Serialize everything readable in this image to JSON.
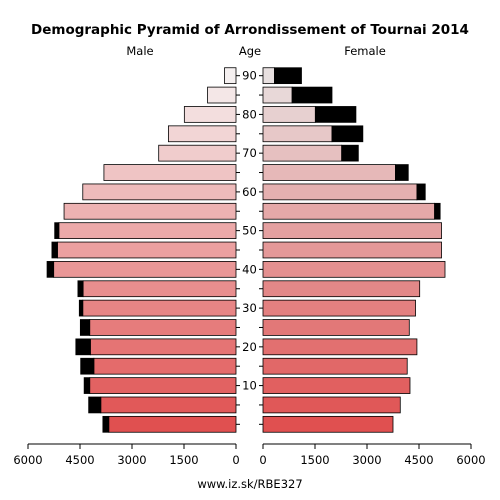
{
  "chart_data": {
    "type": "bar",
    "title": "Demographic Pyramid of Arrondissement of Tournai 2014",
    "left_label": "Male",
    "center_label": "Age",
    "right_label": "Female",
    "footer": "www.iz.sk/RBE327",
    "x_ticks_left": [
      "6000",
      "4500",
      "3000",
      "1500",
      "0"
    ],
    "x_ticks_right": [
      "0",
      "1500",
      "3000",
      "4500",
      "6000"
    ],
    "x_range": [
      0,
      6000
    ],
    "age_ticks": [
      "10",
      "20",
      "30",
      "40",
      "50",
      "60",
      "70",
      "80",
      "90"
    ],
    "age_groups": [
      "0-4",
      "5-9",
      "10-14",
      "15-19",
      "20-24",
      "25-29",
      "30-34",
      "35-39",
      "40-44",
      "45-49",
      "50-54",
      "55-59",
      "60-64",
      "65-69",
      "70-74",
      "75-79",
      "80-84",
      "85-89",
      "90+"
    ],
    "male": [
      3670,
      3900,
      4220,
      4100,
      4200,
      4220,
      4420,
      4410,
      5260,
      5150,
      5110,
      4960,
      4420,
      3810,
      2230,
      1950,
      1490,
      820,
      330
    ],
    "male_excess": [
      170,
      350,
      160,
      380,
      420,
      270,
      100,
      150,
      190,
      160,
      120,
      0,
      0,
      0,
      0,
      0,
      0,
      0,
      0
    ],
    "female": [
      3750,
      3960,
      4240,
      4160,
      4440,
      4220,
      4400,
      4520,
      5250,
      5150,
      5150,
      4950,
      4440,
      3820,
      2270,
      1990,
      1510,
      840,
      330
    ],
    "female_excess": [
      0,
      0,
      0,
      0,
      0,
      0,
      0,
      0,
      0,
      0,
      0,
      160,
      240,
      370,
      480,
      890,
      1170,
      1150,
      780
    ],
    "colors": {
      "excess": "#000000",
      "male_gradient": [
        "#e05050",
        "#f5f0f0"
      ],
      "female_gradient": [
        "#e05050",
        "#e8e0e0"
      ]
    }
  }
}
